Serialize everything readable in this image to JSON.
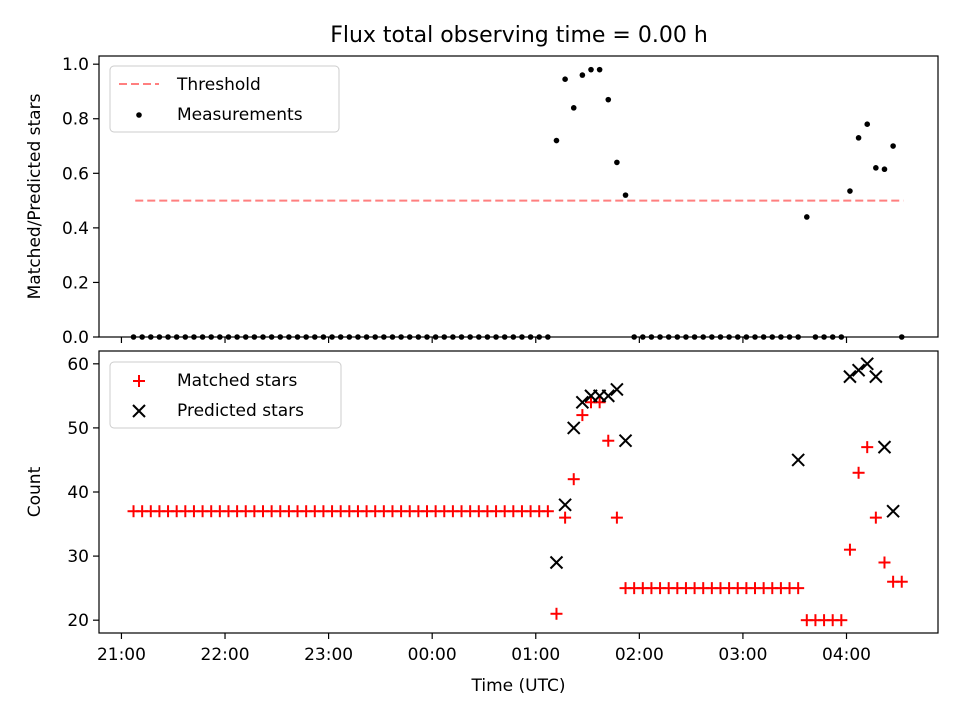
{
  "title": "Flux total observing time = 0.00 h",
  "chart_data": [
    {
      "type": "scatter",
      "ylabel": "Matched/Predicted stars",
      "ylim": [
        0,
        1.03
      ],
      "yticks": [
        0.0,
        0.2,
        0.4,
        0.6,
        0.8,
        1.0
      ],
      "ytick_labels": [
        "0.0",
        "0.2",
        "0.4",
        "0.6",
        "0.8",
        "1.0"
      ],
      "legend_position": "top-left",
      "threshold": {
        "name": "Threshold",
        "value": 0.5,
        "x_range": [
          "21:08",
          "04:33"
        ],
        "color": "#ff7f7f"
      },
      "series": [
        {
          "name": "Measurements",
          "color": "#000000",
          "x": [
            "21:07",
            "21:12",
            "21:17",
            "21:22",
            "21:27",
            "21:32",
            "21:37",
            "21:42",
            "21:47",
            "21:52",
            "21:57",
            "22:02",
            "22:07",
            "22:12",
            "22:17",
            "22:22",
            "22:27",
            "22:32",
            "22:37",
            "22:42",
            "22:47",
            "22:52",
            "22:57",
            "23:02",
            "23:07",
            "23:12",
            "23:17",
            "23:22",
            "23:27",
            "23:32",
            "23:37",
            "23:42",
            "23:47",
            "23:52",
            "23:57",
            "00:02",
            "00:07",
            "00:12",
            "00:17",
            "00:22",
            "00:27",
            "00:32",
            "00:37",
            "00:42",
            "00:47",
            "00:52",
            "00:57",
            "01:02",
            "01:07",
            "01:12",
            "01:17",
            "01:22",
            "01:27",
            "01:32",
            "01:37",
            "01:42",
            "01:47",
            "01:52",
            "01:57",
            "02:02",
            "02:07",
            "02:12",
            "02:17",
            "02:22",
            "02:27",
            "02:32",
            "02:37",
            "02:42",
            "02:47",
            "02:52",
            "02:57",
            "03:02",
            "03:07",
            "03:12",
            "03:17",
            "03:22",
            "03:27",
            "03:32",
            "03:37",
            "03:42",
            "03:47",
            "03:52",
            "03:57",
            "04:02",
            "04:07",
            "04:12",
            "04:17",
            "04:22",
            "04:27",
            "04:32"
          ],
          "y": [
            0,
            0,
            0,
            0,
            0,
            0,
            0,
            0,
            0,
            0,
            0,
            0,
            0,
            0,
            0,
            0,
            0,
            0,
            0,
            0,
            0,
            0,
            0,
            0,
            0,
            0,
            0,
            0,
            0,
            0,
            0,
            0,
            0,
            0,
            0,
            0,
            0,
            0,
            0,
            0,
            0,
            0,
            0,
            0,
            0,
            0,
            0,
            0,
            0,
            0.72,
            0.945,
            0.84,
            0.96,
            0.98,
            0.98,
            0.87,
            0.64,
            0.52,
            0,
            0,
            0,
            0,
            0,
            0,
            0,
            0,
            0,
            0,
            0,
            0,
            0,
            0,
            0,
            0,
            0,
            0,
            0,
            0,
            0.44,
            0,
            0,
            0,
            0,
            0.535,
            0.73,
            0.78,
            0.62,
            0.615,
            0.7,
            0
          ]
        }
      ]
    },
    {
      "type": "scatter",
      "xlabel": "Time (UTC)",
      "ylabel": "Count",
      "ylim": [
        18,
        62
      ],
      "yticks": [
        20,
        30,
        40,
        50,
        60
      ],
      "ytick_labels": [
        "20",
        "30",
        "40",
        "50",
        "60"
      ],
      "xlim": [
        "20:47",
        "04:53"
      ],
      "xticks": [
        "21:00",
        "22:00",
        "23:00",
        "00:00",
        "01:00",
        "02:00",
        "03:00",
        "04:00"
      ],
      "xtick_labels": [
        "21:00",
        "22:00",
        "23:00",
        "00:00",
        "01:00",
        "02:00",
        "03:00",
        "04:00"
      ],
      "legend_position": "top-left",
      "series": [
        {
          "name": "Matched stars",
          "marker": "plus",
          "color": "#ff0000",
          "x": [
            "21:07",
            "21:12",
            "21:17",
            "21:22",
            "21:27",
            "21:32",
            "21:37",
            "21:42",
            "21:47",
            "21:52",
            "21:57",
            "22:02",
            "22:07",
            "22:12",
            "22:17",
            "22:22",
            "22:27",
            "22:32",
            "22:37",
            "22:42",
            "22:47",
            "22:52",
            "22:57",
            "23:02",
            "23:07",
            "23:12",
            "23:17",
            "23:22",
            "23:27",
            "23:32",
            "23:37",
            "23:42",
            "23:47",
            "23:52",
            "23:57",
            "00:02",
            "00:07",
            "00:12",
            "00:17",
            "00:22",
            "00:27",
            "00:32",
            "00:37",
            "00:42",
            "00:47",
            "00:52",
            "00:57",
            "01:02",
            "01:07",
            "01:12",
            "01:17",
            "01:22",
            "01:27",
            "01:32",
            "01:37",
            "01:42",
            "01:47",
            "01:52",
            "01:57",
            "02:02",
            "02:07",
            "02:12",
            "02:17",
            "02:22",
            "02:27",
            "02:32",
            "02:37",
            "02:42",
            "02:47",
            "02:52",
            "02:57",
            "03:02",
            "03:07",
            "03:12",
            "03:17",
            "03:22",
            "03:27",
            "03:32",
            "03:37",
            "03:42",
            "03:47",
            "03:52",
            "03:57",
            "04:02",
            "04:07",
            "04:12",
            "04:17",
            "04:22",
            "04:27",
            "04:32"
          ],
          "y": [
            37,
            37,
            37,
            37,
            37,
            37,
            37,
            37,
            37,
            37,
            37,
            37,
            37,
            37,
            37,
            37,
            37,
            37,
            37,
            37,
            37,
            37,
            37,
            37,
            37,
            37,
            37,
            37,
            37,
            37,
            37,
            37,
            37,
            37,
            37,
            37,
            37,
            37,
            37,
            37,
            37,
            37,
            37,
            37,
            37,
            37,
            37,
            37,
            37,
            21,
            36,
            42,
            52,
            54,
            54,
            48,
            36,
            25,
            25,
            25,
            25,
            25,
            25,
            25,
            25,
            25,
            25,
            25,
            25,
            25,
            25,
            25,
            25,
            25,
            25,
            25,
            25,
            25,
            20,
            20,
            20,
            20,
            20,
            31,
            43,
            47,
            36,
            29,
            26,
            26
          ]
        },
        {
          "name": "Predicted stars",
          "marker": "x",
          "color": "#000000",
          "x": [
            "01:12",
            "01:17",
            "01:22",
            "01:27",
            "01:32",
            "01:37",
            "01:42",
            "01:47",
            "01:52",
            "03:32",
            "04:02",
            "04:07",
            "04:12",
            "04:17",
            "04:22",
            "04:27"
          ],
          "y": [
            29,
            38,
            50,
            54,
            55,
            55,
            55,
            56,
            48,
            45,
            58,
            59,
            60,
            58,
            47,
            37
          ]
        }
      ]
    }
  ]
}
